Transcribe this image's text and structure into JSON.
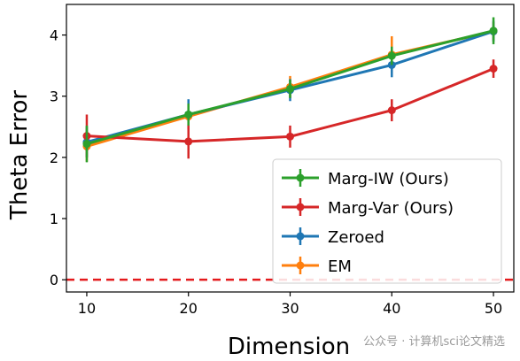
{
  "chart_data": {
    "type": "line",
    "x": [
      10,
      20,
      30,
      40,
      50
    ],
    "xlabel": "Dimension",
    "ylabel": "Theta Error",
    "xlim": [
      8,
      52
    ],
    "ylim": [
      -0.2,
      4.5
    ],
    "xticks": [
      "10",
      "20",
      "30",
      "40",
      "50"
    ],
    "yticks": [
      "0",
      "1",
      "2",
      "3",
      "4"
    ],
    "grid": false,
    "legend_position": "lower-right",
    "series": [
      {
        "name": "EM",
        "color": "#ff7f0e",
        "values": [
          2.18,
          2.67,
          3.15,
          3.68,
          4.06
        ],
        "errors": [
          0.25,
          0.2,
          0.18,
          0.3,
          0.15
        ]
      },
      {
        "name": "Zeroed",
        "color": "#1f77b4",
        "values": [
          2.25,
          2.7,
          3.1,
          3.51,
          4.06
        ],
        "errors": [
          0.25,
          0.25,
          0.18,
          0.2,
          0.17
        ]
      },
      {
        "name": "Marg-Var (Ours)",
        "color": "#d62728",
        "values": [
          2.35,
          2.26,
          2.34,
          2.77,
          3.45
        ],
        "errors": [
          0.35,
          0.28,
          0.18,
          0.18,
          0.15
        ]
      },
      {
        "name": "Marg-IW (Ours)",
        "color": "#2ca02c",
        "values": [
          2.22,
          2.7,
          3.12,
          3.66,
          4.07
        ],
        "errors": [
          0.3,
          0.18,
          0.15,
          0.15,
          0.22
        ]
      }
    ],
    "legend_order": [
      "Marg-IW (Ours)",
      "Marg-Var (Ours)",
      "Zeroed",
      "EM"
    ],
    "reference_line": {
      "y": 0,
      "color": "#e41a1c",
      "style": "dashed"
    }
  },
  "watermark": {
    "text": "公众号 · 计算机sci论文精选"
  }
}
